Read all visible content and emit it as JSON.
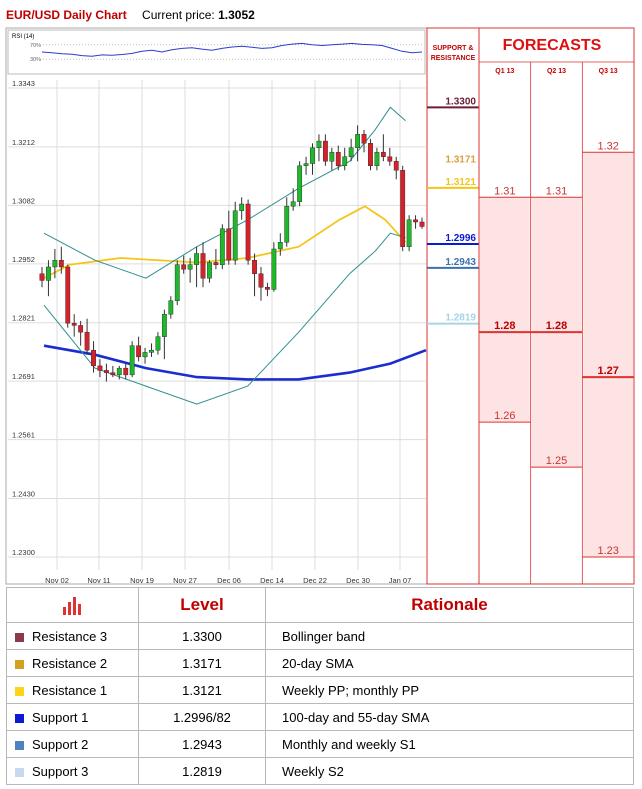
{
  "header": {
    "title": "EUR/USD Daily Chart",
    "price_label": "Current price:",
    "price_value": "1.3052"
  },
  "sr_panel": {
    "title_line1": "SUPPORT &",
    "title_line2": "RESISTANCE",
    "levels": [
      {
        "value": 1.33,
        "label": "1.3300",
        "color": "#6b1d36",
        "line": true
      },
      {
        "value": 1.3171,
        "label": "1.3171",
        "color": "#d8a040",
        "line": false
      },
      {
        "value": 1.3121,
        "label": "1.3121",
        "color": "#f5c518",
        "line": true
      },
      {
        "value": 1.2996,
        "label": "1.2996",
        "color": "#0a1ad6",
        "line": true
      },
      {
        "value": 1.2943,
        "label": "1.2943",
        "color": "#3a72b0",
        "line": true
      },
      {
        "value": 1.2819,
        "label": "1.2819",
        "color": "#a8d4e6",
        "line": true
      }
    ]
  },
  "forecasts": {
    "title": "FORECASTS",
    "columns": [
      {
        "label": "Q1 13",
        "marks": [
          {
            "value": 1.31,
            "label": "1.31",
            "bold": false
          },
          {
            "value": 1.28,
            "label": "1.28",
            "bold": true
          },
          {
            "value": 1.26,
            "label": "1.26",
            "bold": false
          }
        ]
      },
      {
        "label": "Q2 13",
        "marks": [
          {
            "value": 1.31,
            "label": "1.31",
            "bold": false
          },
          {
            "value": 1.28,
            "label": "1.28",
            "bold": true
          },
          {
            "value": 1.25,
            "label": "1.25",
            "bold": false
          }
        ]
      },
      {
        "label": "Q3 13",
        "marks": [
          {
            "value": 1.32,
            "label": "1.32",
            "bold": false
          },
          {
            "value": 1.27,
            "label": "1.27",
            "bold": true
          },
          {
            "value": 1.23,
            "label": "1.23",
            "bold": false
          }
        ]
      }
    ]
  },
  "chart_data": {
    "type": "candlestick",
    "title": "EUR/USD Daily Chart",
    "y_ticks": [
      1.3343,
      1.3212,
      1.3082,
      1.2952,
      1.2821,
      1.2691,
      1.2561,
      1.243,
      1.23
    ],
    "ylim": [
      1.23,
      1.3343
    ],
    "x_tick_labels": [
      "Nov 02",
      "Nov 11",
      "Nov 19",
      "Nov 27",
      "Dec 06",
      "Dec 14",
      "Dec 22",
      "Dec 30",
      "Jan 07"
    ],
    "grid": true,
    "candles": [
      {
        "o": 1.293,
        "h": 1.2945,
        "l": 1.29,
        "c": 1.2915
      },
      {
        "o": 1.2915,
        "h": 1.296,
        "l": 1.288,
        "c": 1.2945
      },
      {
        "o": 1.2945,
        "h": 1.2985,
        "l": 1.292,
        "c": 1.296
      },
      {
        "o": 1.296,
        "h": 1.299,
        "l": 1.293,
        "c": 1.2945
      },
      {
        "o": 1.2945,
        "h": 1.295,
        "l": 1.281,
        "c": 1.282
      },
      {
        "o": 1.282,
        "h": 1.284,
        "l": 1.279,
        "c": 1.2815
      },
      {
        "o": 1.2815,
        "h": 1.2825,
        "l": 1.277,
        "c": 1.28
      },
      {
        "o": 1.28,
        "h": 1.283,
        "l": 1.275,
        "c": 1.276
      },
      {
        "o": 1.276,
        "h": 1.278,
        "l": 1.271,
        "c": 1.2725
      },
      {
        "o": 1.2725,
        "h": 1.274,
        "l": 1.27,
        "c": 1.2715
      },
      {
        "o": 1.2715,
        "h": 1.273,
        "l": 1.269,
        "c": 1.271
      },
      {
        "o": 1.271,
        "h": 1.2725,
        "l": 1.27,
        "c": 1.2705
      },
      {
        "o": 1.2705,
        "h": 1.2725,
        "l": 1.2695,
        "c": 1.272
      },
      {
        "o": 1.272,
        "h": 1.273,
        "l": 1.2695,
        "c": 1.2705
      },
      {
        "o": 1.2705,
        "h": 1.278,
        "l": 1.27,
        "c": 1.277
      },
      {
        "o": 1.277,
        "h": 1.279,
        "l": 1.2735,
        "c": 1.2745
      },
      {
        "o": 1.2745,
        "h": 1.2765,
        "l": 1.273,
        "c": 1.2755
      },
      {
        "o": 1.2755,
        "h": 1.2775,
        "l": 1.2745,
        "c": 1.276
      },
      {
        "o": 1.276,
        "h": 1.28,
        "l": 1.275,
        "c": 1.279
      },
      {
        "o": 1.279,
        "h": 1.285,
        "l": 1.274,
        "c": 1.284
      },
      {
        "o": 1.284,
        "h": 1.288,
        "l": 1.283,
        "c": 1.287
      },
      {
        "o": 1.287,
        "h": 1.296,
        "l": 1.286,
        "c": 1.295
      },
      {
        "o": 1.295,
        "h": 1.297,
        "l": 1.293,
        "c": 1.294
      },
      {
        "o": 1.294,
        "h": 1.2965,
        "l": 1.291,
        "c": 1.295
      },
      {
        "o": 1.295,
        "h": 1.299,
        "l": 1.29,
        "c": 1.2975
      },
      {
        "o": 1.2975,
        "h": 1.3,
        "l": 1.29,
        "c": 1.292
      },
      {
        "o": 1.292,
        "h": 1.296,
        "l": 1.291,
        "c": 1.2955
      },
      {
        "o": 1.2955,
        "h": 1.2985,
        "l": 1.294,
        "c": 1.295
      },
      {
        "o": 1.295,
        "h": 1.304,
        "l": 1.294,
        "c": 1.303
      },
      {
        "o": 1.303,
        "h": 1.307,
        "l": 1.295,
        "c": 1.296
      },
      {
        "o": 1.296,
        "h": 1.309,
        "l": 1.295,
        "c": 1.307
      },
      {
        "o": 1.307,
        "h": 1.31,
        "l": 1.305,
        "c": 1.3085
      },
      {
        "o": 1.3085,
        "h": 1.3095,
        "l": 1.295,
        "c": 1.296
      },
      {
        "o": 1.296,
        "h": 1.2975,
        "l": 1.288,
        "c": 1.293
      },
      {
        "o": 1.293,
        "h": 1.2945,
        "l": 1.287,
        "c": 1.29
      },
      {
        "o": 1.29,
        "h": 1.291,
        "l": 1.288,
        "c": 1.2895
      },
      {
        "o": 1.2895,
        "h": 1.3,
        "l": 1.289,
        "c": 1.2985
      },
      {
        "o": 1.2985,
        "h": 1.302,
        "l": 1.297,
        "c": 1.3
      },
      {
        "o": 1.3,
        "h": 1.31,
        "l": 1.299,
        "c": 1.308
      },
      {
        "o": 1.308,
        "h": 1.312,
        "l": 1.307,
        "c": 1.309
      },
      {
        "o": 1.309,
        "h": 1.318,
        "l": 1.308,
        "c": 1.317
      },
      {
        "o": 1.317,
        "h": 1.319,
        "l": 1.315,
        "c": 1.3175
      },
      {
        "o": 1.3175,
        "h": 1.322,
        "l": 1.315,
        "c": 1.321
      },
      {
        "o": 1.321,
        "h": 1.324,
        "l": 1.318,
        "c": 1.3225
      },
      {
        "o": 1.3225,
        "h": 1.324,
        "l": 1.317,
        "c": 1.318
      },
      {
        "o": 1.318,
        "h": 1.321,
        "l": 1.316,
        "c": 1.32
      },
      {
        "o": 1.32,
        "h": 1.3215,
        "l": 1.316,
        "c": 1.317
      },
      {
        "o": 1.317,
        "h": 1.321,
        "l": 1.316,
        "c": 1.319
      },
      {
        "o": 1.319,
        "h": 1.323,
        "l": 1.318,
        "c": 1.321
      },
      {
        "o": 1.321,
        "h": 1.326,
        "l": 1.318,
        "c": 1.324
      },
      {
        "o": 1.324,
        "h": 1.325,
        "l": 1.32,
        "c": 1.322
      },
      {
        "o": 1.322,
        "h": 1.323,
        "l": 1.316,
        "c": 1.317
      },
      {
        "o": 1.317,
        "h": 1.321,
        "l": 1.316,
        "c": 1.32
      },
      {
        "o": 1.32,
        "h": 1.324,
        "l": 1.318,
        "c": 1.319
      },
      {
        "o": 1.319,
        "h": 1.321,
        "l": 1.317,
        "c": 1.318
      },
      {
        "o": 1.318,
        "h": 1.319,
        "l": 1.314,
        "c": 1.316
      },
      {
        "o": 1.316,
        "h": 1.317,
        "l": 1.298,
        "c": 1.299
      },
      {
        "o": 1.299,
        "h": 1.306,
        "l": 1.298,
        "c": 1.305
      },
      {
        "o": 1.305,
        "h": 1.306,
        "l": 1.303,
        "c": 1.3045
      },
      {
        "o": 1.3045,
        "h": 1.3055,
        "l": 1.303,
        "c": 1.3035
      }
    ],
    "series": [
      {
        "name": "",
        "color": "#f5c518",
        "values": [
          [
            0,
            1.292
          ],
          [
            5,
            1.295
          ],
          [
            15,
            1.2965
          ],
          [
            30,
            1.2955
          ],
          [
            40,
            1.2965
          ],
          [
            50,
            1.299
          ],
          [
            58,
            1.305
          ],
          [
            63,
            1.308
          ],
          [
            67,
            1.305
          ],
          [
            71,
            1.3
          ]
        ]
      },
      {
        "name": "",
        "color": "#1a2ed0",
        "values": [
          [
            0,
            1.277
          ],
          [
            10,
            1.275
          ],
          [
            20,
            1.272
          ],
          [
            30,
            1.27
          ],
          [
            40,
            1.2695
          ],
          [
            50,
            1.2695
          ],
          [
            60,
            1.271
          ],
          [
            68,
            1.273
          ],
          [
            75,
            1.276
          ]
        ]
      },
      {
        "name": "",
        "color": "#2f8f8f",
        "values": [
          [
            0,
            1.302
          ],
          [
            10,
            1.296
          ],
          [
            20,
            1.292
          ],
          [
            30,
            1.299
          ],
          [
            40,
            1.305
          ],
          [
            50,
            1.312
          ],
          [
            60,
            1.318
          ],
          [
            65,
            1.325
          ],
          [
            68,
            1.33
          ],
          [
            71,
            1.327
          ]
        ]
      },
      {
        "name": "",
        "color": "#2f8f8f",
        "values": [
          [
            0,
            1.286
          ],
          [
            10,
            1.272
          ],
          [
            20,
            1.268
          ],
          [
            30,
            1.264
          ],
          [
            40,
            1.268
          ],
          [
            50,
            1.28
          ],
          [
            60,
            1.293
          ],
          [
            65,
            1.298
          ],
          [
            68,
            1.302
          ],
          [
            71,
            1.301
          ]
        ]
      }
    ],
    "rsi": {
      "label": "RSI (14)",
      "levels": [
        {
          "value": 70,
          "label": "70%"
        },
        {
          "value": 30,
          "label": "30%"
        }
      ],
      "values": [
        50,
        48,
        45,
        44,
        40,
        38,
        42,
        41,
        43,
        46,
        52,
        55,
        50,
        56,
        60,
        62,
        58,
        55,
        60,
        64,
        66,
        63,
        60,
        62,
        68,
        72,
        74,
        70,
        68,
        70,
        72,
        74,
        71,
        70,
        68,
        60,
        52,
        48,
        50
      ]
    }
  },
  "table": {
    "headers": {
      "level": "Level",
      "rationale": "Rationale"
    },
    "rows": [
      {
        "name": "Resistance 3",
        "color": "#8b3a4a",
        "level": "1.3300",
        "rationale": "Bollinger band"
      },
      {
        "name": "Resistance 2",
        "color": "#d4a020",
        "level": "1.3171",
        "rationale": "20-day SMA"
      },
      {
        "name": "Resistance 1",
        "color": "#ffd21e",
        "level": "1.3121",
        "rationale": "Weekly PP; monthly PP"
      },
      {
        "name": "Support 1",
        "color": "#0a1ad6",
        "level": "1.2996/82",
        "rationale": "100-day and 55-day SMA"
      },
      {
        "name": "Support 2",
        "color": "#4f81bd",
        "level": "1.2943",
        "rationale": "Monthly and weekly S1"
      },
      {
        "name": "Support 3",
        "color": "#c6d9ef",
        "level": "1.2819",
        "rationale": "Weekly S2"
      }
    ]
  }
}
